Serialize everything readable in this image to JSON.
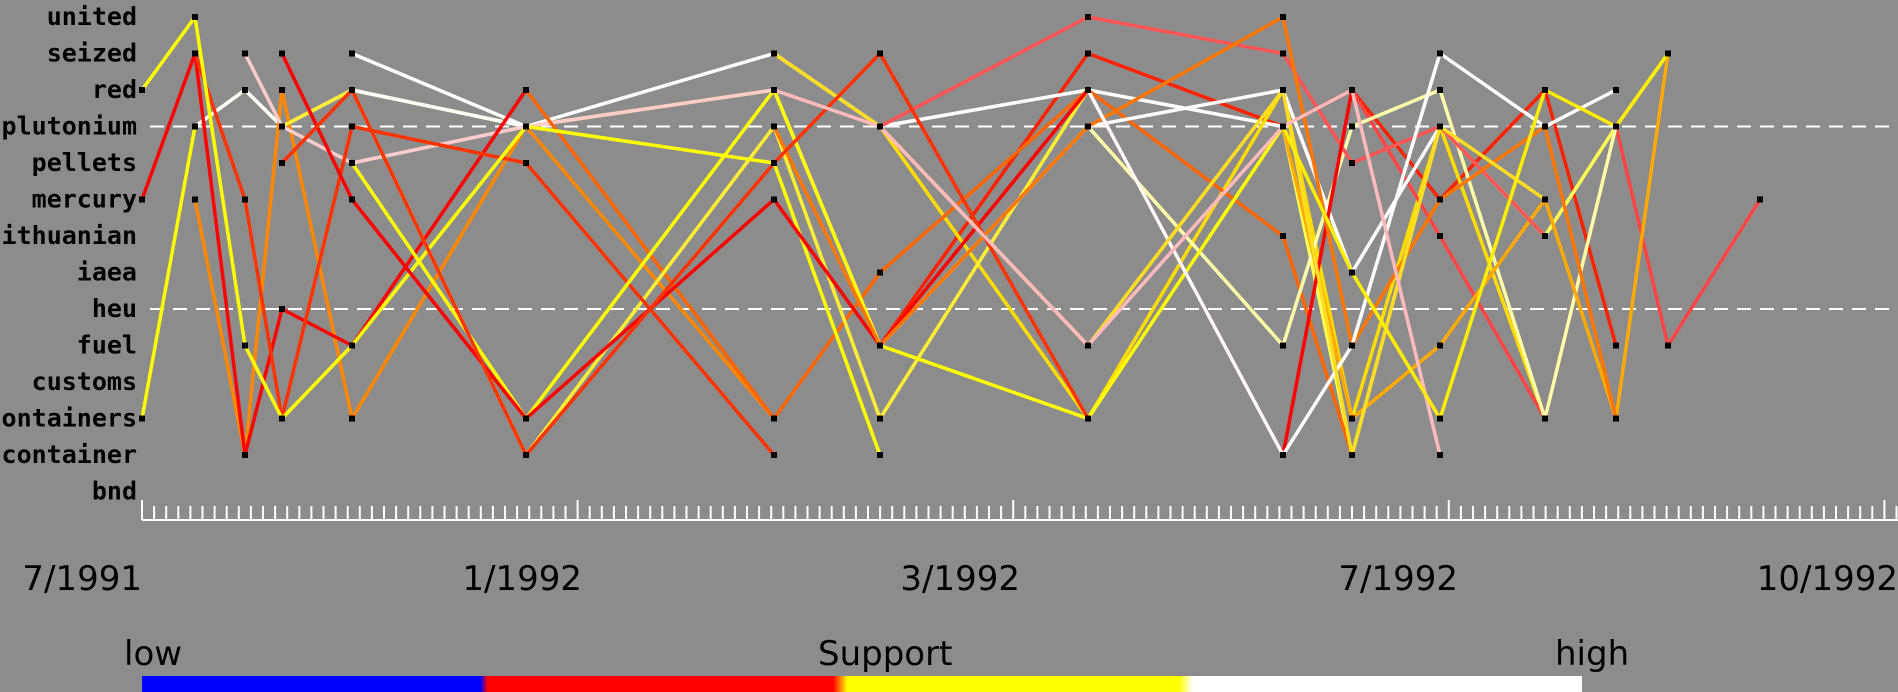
{
  "chart_data": {
    "type": "line",
    "title": "",
    "xlabel": "",
    "ylabel": "",
    "terms": [
      "united",
      "seized",
      "red",
      "plutonium",
      "pellets",
      "mercury",
      "lithuanian",
      "iaea",
      "heu",
      "fuel",
      "customs",
      "containers",
      "container",
      "bnd"
    ],
    "x_tick_labels": [
      "7/1991",
      "1/1992",
      "3/1992",
      "7/1992",
      "10/1992"
    ],
    "x_range": [
      "7/1991",
      "10/1992"
    ],
    "grid": false,
    "reference_lines_at_terms": [
      "plutonium",
      "heu"
    ],
    "color_scale": {
      "title": "Support",
      "low_label": "low",
      "high_label": "high",
      "colors": [
        "#0000ff",
        "#ff0000",
        "#ffff00",
        "#ffffff"
      ]
    },
    "series": [
      {
        "color": "#ffff00",
        "values": [
          "containers",
          "plutonium",
          "red",
          "plutonium",
          "red",
          "plutonium",
          "red"
        ]
      },
      {
        "color": "#ffffff",
        "values": [
          "plutonium",
          "red",
          "plutonium",
          "red",
          "plutonium"
        ]
      },
      {
        "color": "#ff2200",
        "values": [
          "red",
          "fuel",
          "seized",
          "plutonium",
          "red",
          "mercury",
          "red",
          "fuel"
        ]
      },
      {
        "color": "#ffff55",
        "values": [
          "plutonium",
          "container",
          "plutonium",
          "lithuanian",
          "plutonium",
          "seized"
        ]
      },
      {
        "color": "#ff8800",
        "values": [
          "mercury",
          "container",
          "red",
          "containers",
          "plutonium",
          "containers"
        ]
      },
      {
        "color": "#ffffff",
        "values": [
          "seized",
          "plutonium",
          "seized",
          "plutonium",
          "red",
          "plutonium"
        ]
      },
      {
        "color": "#ffdd00",
        "values": [
          "plutonium",
          "containers",
          "red",
          "containers",
          "plutonium",
          "containers"
        ]
      },
      {
        "color": "#ff4444",
        "values": [
          "red",
          "lithuanian",
          "containers",
          "plutonium",
          "fuel",
          "mercury"
        ]
      },
      {
        "color": "#ffcccc",
        "values": [
          "seized",
          "plutonium",
          "pellets",
          "plutonium",
          "red",
          "fuel"
        ]
      },
      {
        "color": "#ff6600",
        "values": [
          "red",
          "containers",
          "iaea",
          "red",
          "lithuanian",
          "container"
        ]
      },
      {
        "color": "#ffffaa",
        "values": [
          "plutonium",
          "fuel",
          "plutonium",
          "red",
          "containers",
          "plutonium"
        ]
      },
      {
        "color": "#ff0000",
        "values": [
          "mercury",
          "seized",
          "container",
          "heu",
          "fuel",
          "red"
        ]
      },
      {
        "color": "#ffee33",
        "values": [
          "plutonium",
          "red",
          "container",
          "plutonium",
          "containers",
          "red"
        ]
      },
      {
        "color": "#ffffff",
        "values": [
          "red",
          "fuel",
          "plutonium",
          "red",
          "iaea",
          "plutonium"
        ]
      },
      {
        "color": "#ffaa00",
        "values": [
          "plutonium",
          "containers",
          "fuel",
          "mercury",
          "containers",
          "seized"
        ]
      },
      {
        "color": "#ff3300",
        "values": [
          "seized",
          "mercury",
          "containers",
          "plutonium",
          "pellets",
          "container"
        ]
      },
      {
        "color": "#ffff00",
        "values": [
          "pellets",
          "containers",
          "red",
          "fuel",
          "containers",
          "plutonium"
        ]
      },
      {
        "color": "#ff5555",
        "values": [
          "plutonium",
          "united",
          "seized",
          "pellets",
          "plutonium",
          "lithuanian"
        ]
      },
      {
        "color": "#ffff00",
        "values": [
          "red",
          "united",
          "fuel",
          "containers",
          "fuel",
          "plutonium",
          "pellets",
          "container"
        ]
      },
      {
        "color": "#ff0000",
        "values": [
          "seized",
          "mercury",
          "containers",
          "mercury",
          "fuel",
          "red",
          "container",
          "red"
        ]
      },
      {
        "color": "#ff7700",
        "values": [
          "plutonium",
          "fuel",
          "plutonium",
          "united",
          "fuel",
          "mercury",
          "plutonium",
          "containers"
        ]
      },
      {
        "color": "#ffffff",
        "values": [
          "red",
          "container",
          "fuel",
          "seized",
          "plutonium",
          "red"
        ]
      },
      {
        "color": "#ffdd22",
        "values": [
          "seized",
          "plutonium",
          "fuel",
          "red",
          "container",
          "plutonium",
          "mercury"
        ]
      },
      {
        "color": "#ff3300",
        "values": [
          "pellets",
          "red",
          "container",
          "pellets",
          "seized",
          "containers"
        ]
      },
      {
        "color": "#ffbbbb",
        "values": [
          "red",
          "plutonium",
          "fuel",
          "plutonium",
          "red",
          "container"
        ]
      },
      {
        "color": "#ffee00",
        "values": [
          "plutonium",
          "iaea",
          "containers",
          "red",
          "plutonium",
          "seized"
        ]
      }
    ]
  }
}
